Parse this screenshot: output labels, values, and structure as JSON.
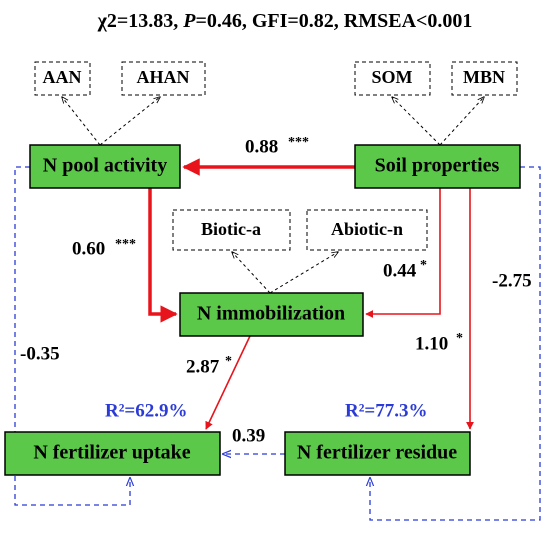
{
  "title": {
    "parts": [
      "χ2=13.83, ",
      "P",
      "=0.46, GFI=0.82, RMSEA<0.001"
    ]
  },
  "nodes": {
    "n_pool": "N pool activity",
    "soil": "Soil properties",
    "immob": "N immobilization",
    "uptake": "N fertilizer uptake",
    "residue": "N fertilizer residue"
  },
  "indicators": {
    "aan": "AAN",
    "ahan": "AHAN",
    "som": "SOM",
    "mbn": "MBN",
    "biotic": "Biotic-a",
    "abiotic": "Abiotic-n"
  },
  "paths": {
    "soil_npool": {
      "coef": "0.88",
      "sig": "***"
    },
    "npool_immob": {
      "coef": "0.60",
      "sig": "***"
    },
    "soil_immob": {
      "coef": "0.44",
      "sig": "*"
    },
    "immob_uptake": {
      "coef": "2.87",
      "sig": "*"
    },
    "soil_residue": {
      "coef": "1.10",
      "sig": "*"
    },
    "residue_uptake": {
      "coef": "0.39"
    },
    "soil_residue_neg": {
      "coef": "-2.75"
    },
    "npool_uptake_neg": {
      "coef": "-0.35"
    }
  },
  "r2": {
    "uptake": "R²=62.9%",
    "residue": "R²=77.3%"
  }
}
